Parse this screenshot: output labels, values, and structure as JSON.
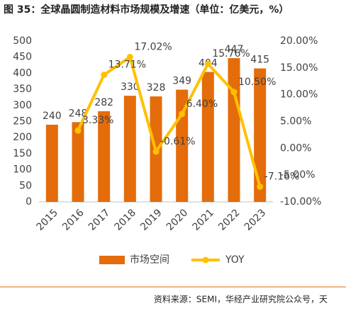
{
  "chart_data": {
    "type": "bar-line",
    "title": "图 35：全球晶圆制造材料市场规模及增速（单位：亿美元，%）",
    "source": "资料来源：SEMI，华经产业研究院公众号，天",
    "categories": [
      "2015",
      "2016",
      "2017",
      "2018",
      "2019",
      "2020",
      "2021",
      "2022",
      "2023"
    ],
    "series": [
      {
        "name": "市场空间",
        "color": "#E46C0A",
        "values": [
          240,
          248,
          282,
          330,
          328,
          349,
          404,
          447,
          415
        ]
      },
      {
        "name": "YOY",
        "color": "#FFC000",
        "axis": "y2",
        "values": [
          null,
          3.33,
          13.71,
          17.02,
          -0.61,
          6.4,
          15.76,
          10.5,
          -7.16
        ],
        "value_labels": [
          null,
          "3.33%",
          "13.71%",
          "17.02%",
          "-0.61%",
          "6.40%",
          "15.76%",
          "10.50%",
          "-7.16%"
        ]
      }
    ],
    "ylim": [
      0,
      500
    ],
    "yticks": [
      0,
      50,
      100,
      150,
      200,
      250,
      300,
      350,
      400,
      450,
      500
    ],
    "y2lim": [
      -10,
      20
    ],
    "y2ticks": [
      {
        "value": -10,
        "label": "-10.00%"
      },
      {
        "value": -5,
        "label": "-5.00%"
      },
      {
        "value": 0,
        "label": "0.00%"
      },
      {
        "value": 5,
        "label": "5.00%"
      },
      {
        "value": 10,
        "label": "10.00%"
      },
      {
        "value": 15,
        "label": "15.00%"
      },
      {
        "value": 20,
        "label": "20.00%"
      }
    ],
    "grid": false
  }
}
